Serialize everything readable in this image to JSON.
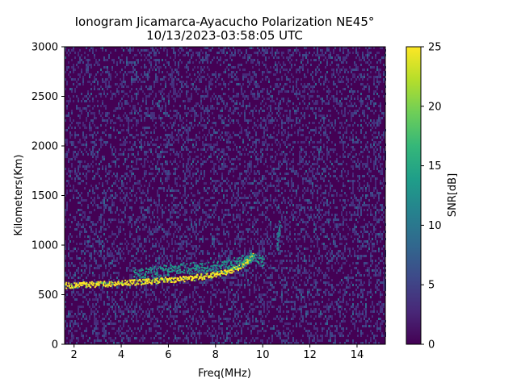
{
  "chart_data": {
    "type": "heatmap",
    "title_line1": "Ionogram Jicamarca-Ayacucho Polarization NE45°",
    "title_line2": "10/13/2023-03:58:05 UTC",
    "xlabel": "Freq(MHz)",
    "ylabel": "Kilometers(Km)",
    "colorbar_label": "SNR[dB]",
    "xlim": [
      1.6,
      15.2
    ],
    "ylim": [
      0,
      3000
    ],
    "clim": [
      0,
      25
    ],
    "xticks": [
      2,
      4,
      6,
      8,
      10,
      12,
      14
    ],
    "yticks": [
      0,
      500,
      1000,
      1500,
      2000,
      2500,
      3000
    ],
    "cticks": [
      0,
      5,
      10,
      15,
      20,
      25
    ],
    "colormap": [
      "#440154",
      "#482878",
      "#3e4989",
      "#31688e",
      "#26828e",
      "#1f9e89",
      "#35b779",
      "#6ece58",
      "#b5de2b",
      "#fde725"
    ],
    "echo_traces": [
      {
        "name": "F-layer trace",
        "snr_db": 25,
        "points": [
          [
            1.6,
            600
          ],
          [
            3,
            610
          ],
          [
            4,
            625
          ],
          [
            5,
            640
          ],
          [
            6,
            655
          ],
          [
            7,
            675
          ],
          [
            7.8,
            700
          ],
          [
            8.4,
            730
          ],
          [
            8.9,
            780
          ],
          [
            9.3,
            840
          ],
          [
            9.6,
            900
          ]
        ]
      },
      {
        "name": "spread echoes",
        "snr_db": 14,
        "points": [
          [
            4.5,
            700
          ],
          [
            5.5,
            740
          ],
          [
            6.5,
            780
          ],
          [
            7.5,
            770
          ],
          [
            8.5,
            800
          ],
          [
            9.5,
            880
          ],
          [
            10.0,
            840
          ]
        ]
      },
      {
        "name": "cusp",
        "snr_db": 12,
        "points": [
          [
            10.6,
            1000
          ],
          [
            10.65,
            1120
          ],
          [
            10.7,
            1200
          ]
        ]
      }
    ]
  }
}
